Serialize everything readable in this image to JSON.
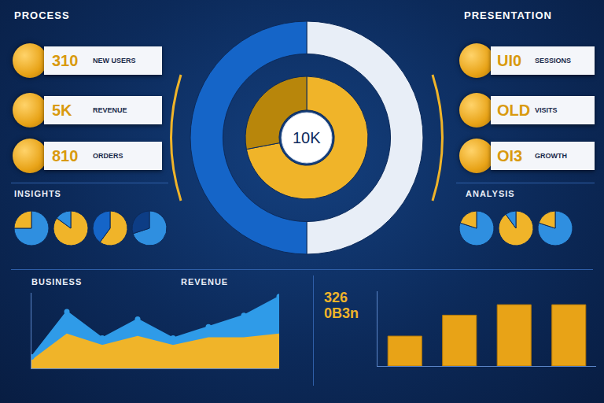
{
  "header": {
    "left_title": "PROCESS",
    "right_title": "PRESENTATION"
  },
  "cards_left": [
    {
      "value": "310",
      "label": "NEW USERS"
    },
    {
      "value": "5K",
      "label": "REVENUE"
    },
    {
      "value": "810",
      "label": "ORDERS"
    }
  ],
  "cards_right": [
    {
      "value": "UI0",
      "label": "SESSIONS"
    },
    {
      "value": "OLD",
      "label": "VISITS"
    },
    {
      "value": "OI3",
      "label": "GROWTH"
    }
  ],
  "chart_data": [
    {
      "type": "pie",
      "center_label": "10K",
      "series": [
        {
          "values": [
            50,
            50
          ],
          "colors": [
            "#e8eef7",
            "#1565c8"
          ]
        },
        {
          "values": [
            72,
            28
          ],
          "colors": [
            "#f0b429",
            "#b8860b"
          ]
        }
      ]
    },
    {
      "type": "pie",
      "title": "INSIGHTS",
      "series": [
        {
          "values": [
            75,
            25
          ],
          "colors": [
            "#2f8fe0",
            "#f0b429"
          ]
        },
        {
          "values": [
            85,
            15
          ],
          "colors": [
            "#f0b429",
            "#2f8fe0"
          ]
        },
        {
          "values": [
            60,
            40
          ],
          "colors": [
            "#f0b429",
            "#1565c8"
          ]
        },
        {
          "values": [
            70,
            30
          ],
          "colors": [
            "#2f8fe0",
            "#0d3d85"
          ]
        }
      ]
    },
    {
      "type": "pie",
      "title": "ANALYSIS",
      "series": [
        {
          "values": [
            80,
            20
          ],
          "colors": [
            "#2f8fe0",
            "#f0b429"
          ]
        },
        {
          "values": [
            90,
            10
          ],
          "colors": [
            "#f0b429",
            "#2f8fe0"
          ]
        },
        {
          "values": [
            80,
            20
          ],
          "colors": [
            "#2f8fe0",
            "#f0b429"
          ]
        }
      ]
    },
    {
      "type": "line",
      "title": "BUSINESS",
      "subtitle": "REVENUE",
      "x": [
        0,
        1,
        2,
        3,
        4,
        5,
        6,
        7
      ],
      "series": [
        {
          "type": "area",
          "color": "#f0b429",
          "values": [
            10,
            45,
            30,
            42,
            30,
            40,
            40,
            45
          ]
        },
        {
          "type": "area",
          "color": "#2f9be8",
          "marker": "circle",
          "values": [
            15,
            75,
            40,
            65,
            40,
            55,
            70,
            95
          ]
        }
      ],
      "xlim": [
        0,
        7
      ],
      "ylim": [
        0,
        100
      ],
      "tick_labels": false,
      "grid": false
    },
    {
      "type": "bar",
      "title": "326 0B3n",
      "categories": [
        null,
        null,
        null,
        null
      ],
      "values": [
        40,
        68,
        82,
        82
      ],
      "color": "#e8a317",
      "ylim": [
        0,
        100
      ],
      "tick_labels": false,
      "grid": false
    }
  ]
}
